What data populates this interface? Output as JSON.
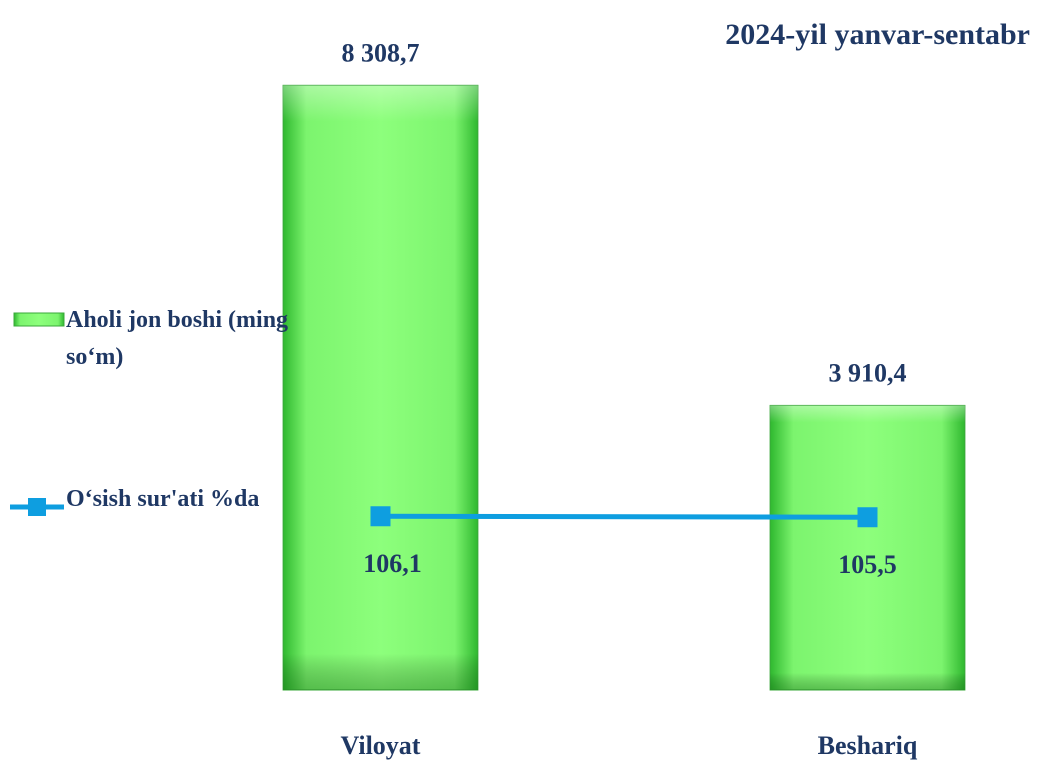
{
  "chart_data": {
    "type": "bar",
    "title": "2024-yil  yanvar-sentabr",
    "categories": [
      "Viloyat",
      "Beshariq"
    ],
    "series": [
      {
        "name": "Aholi jon boshi (ming so‘m)",
        "type": "bar",
        "color": "#6ef06a",
        "values": [
          8308.7,
          3910.4
        ],
        "value_labels": [
          "8 308,7",
          "3 910,4"
        ]
      },
      {
        "name": "O‘sish sur'ati %da",
        "type": "line",
        "axis": "y2",
        "color": "#0e9ee0",
        "values": [
          106.1,
          105.5
        ],
        "value_labels": [
          "106,1",
          "105,5"
        ]
      }
    ],
    "ylim": [
      0,
      9000
    ],
    "y2lim": [
      0,
      400
    ],
    "legend": "left"
  }
}
